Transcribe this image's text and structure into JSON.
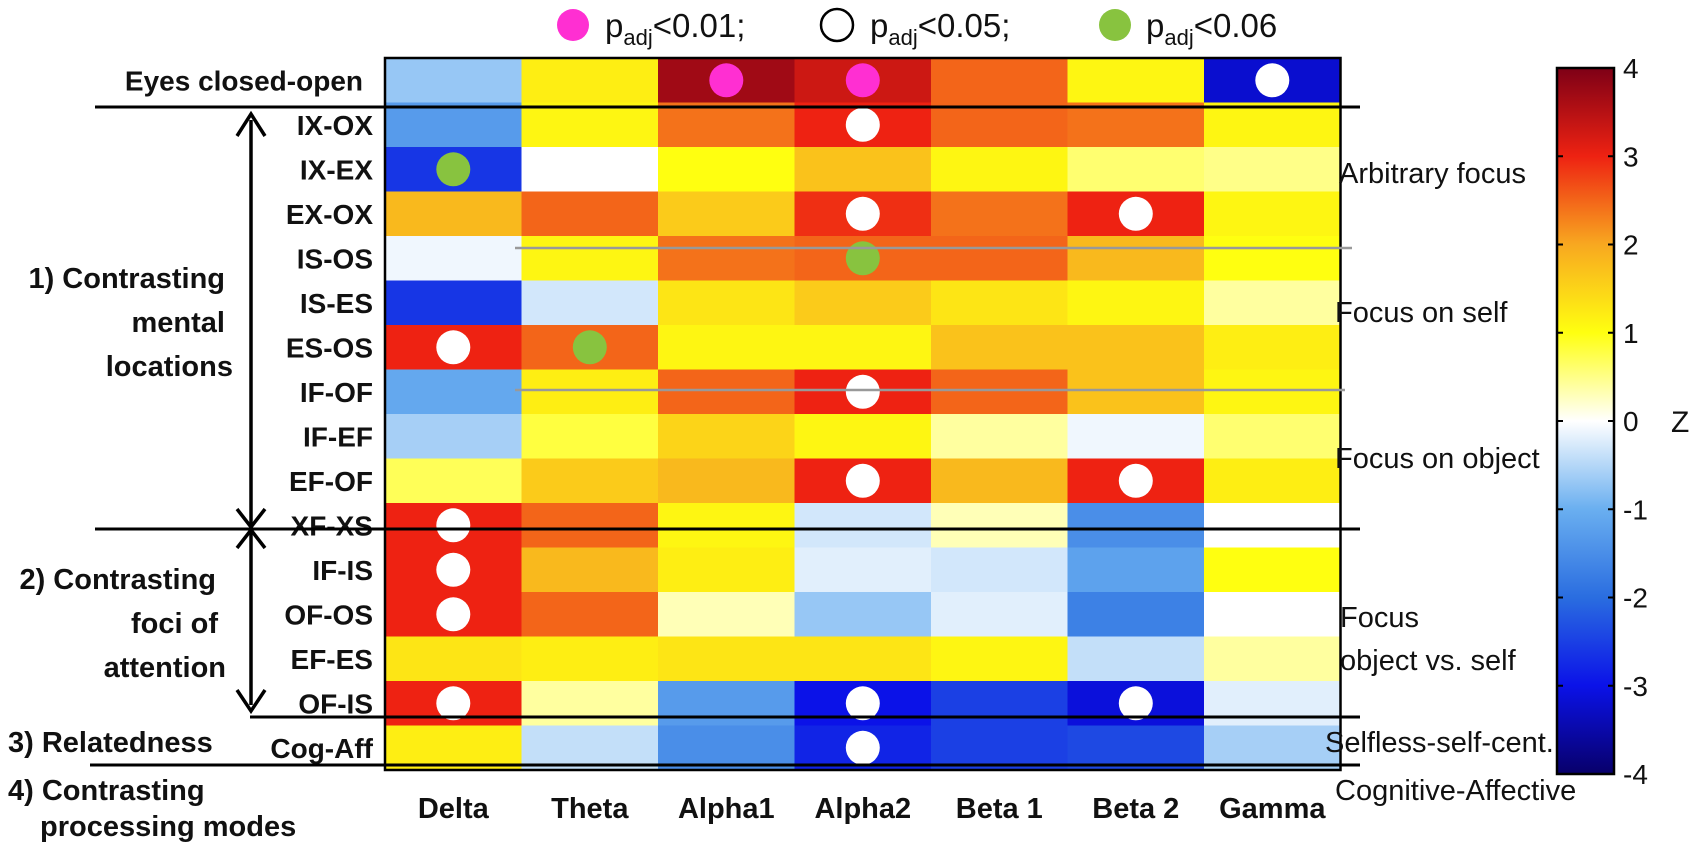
{
  "chart_data": {
    "type": "heatmap",
    "legend_entries": [
      {
        "text": "p",
        "sub": "adj",
        "suffix": "<0.01;",
        "color": "#ff2fd2"
      },
      {
        "text": "p",
        "sub": "adj",
        "suffix": "<0.05;",
        "color": "#ffffff"
      },
      {
        "text": "p",
        "sub": "adj",
        "suffix": "<0.06",
        "color": "#88c33f"
      }
    ],
    "columns": [
      "Delta",
      "Theta",
      "Alpha1",
      "Alpha2",
      "Beta 1",
      "Beta 2",
      "Gamma"
    ],
    "rows": [
      "Eyes closed-open",
      "IX-OX",
      "IX-EX",
      "EX-OX",
      "IS-OS",
      "IS-ES",
      "ES-OS",
      "IF-OF",
      "IF-EF",
      "EF-OF",
      "XF-XS",
      "IF-IS",
      "OF-OS",
      "EF-ES",
      "OF-IS",
      "Cog-Aff"
    ],
    "values": [
      [
        -0.7,
        1.2,
        3.7,
        3.3,
        2.5,
        1.1,
        -3.2
      ],
      [
        -1.3,
        1.1,
        2.4,
        3.0,
        2.5,
        2.4,
        1.1
      ],
      [
        -2.6,
        0.0,
        1.0,
        1.7,
        1.1,
        0.6,
        0.5
      ],
      [
        1.8,
        2.5,
        1.6,
        2.9,
        2.4,
        3.0,
        1.1
      ],
      [
        -0.1,
        1.1,
        2.4,
        2.5,
        2.5,
        1.8,
        1.0
      ],
      [
        -2.6,
        -0.3,
        1.3,
        1.6,
        1.3,
        1.1,
        0.4
      ],
      [
        3.0,
        2.5,
        1.1,
        1.1,
        1.7,
        1.7,
        1.2
      ],
      [
        -1.1,
        1.2,
        2.5,
        3.0,
        2.5,
        1.7,
        1.1
      ],
      [
        -0.6,
        0.8,
        1.5,
        1.1,
        0.4,
        -0.1,
        0.6
      ],
      [
        0.7,
        1.6,
        1.8,
        3.0,
        1.8,
        3.0,
        1.2
      ],
      [
        3.0,
        2.5,
        1.1,
        -0.3,
        0.3,
        -1.5,
        0.0
      ],
      [
        3.0,
        1.8,
        1.2,
        -0.2,
        -0.3,
        -1.2,
        1.0
      ],
      [
        3.0,
        2.5,
        0.3,
        -0.7,
        -0.2,
        -1.7,
        0.0
      ],
      [
        1.3,
        1.2,
        1.3,
        1.3,
        1.1,
        -0.4,
        0.4
      ],
      [
        3.0,
        0.4,
        -1.3,
        -3.0,
        -2.5,
        -3.1,
        -0.2
      ],
      [
        1.2,
        -0.4,
        -1.5,
        -2.8,
        -2.5,
        -2.4,
        -0.6
      ]
    ],
    "markers": [
      {
        "row": 0,
        "col": 2,
        "level": "p<0.01"
      },
      {
        "row": 0,
        "col": 3,
        "level": "p<0.01"
      },
      {
        "row": 0,
        "col": 6,
        "level": "p<0.05"
      },
      {
        "row": 1,
        "col": 3,
        "level": "p<0.05"
      },
      {
        "row": 2,
        "col": 0,
        "level": "p<0.06"
      },
      {
        "row": 3,
        "col": 3,
        "level": "p<0.05"
      },
      {
        "row": 3,
        "col": 5,
        "level": "p<0.05"
      },
      {
        "row": 4,
        "col": 3,
        "level": "p<0.06"
      },
      {
        "row": 6,
        "col": 0,
        "level": "p<0.05"
      },
      {
        "row": 6,
        "col": 1,
        "level": "p<0.06"
      },
      {
        "row": 7,
        "col": 3,
        "level": "p<0.05"
      },
      {
        "row": 9,
        "col": 3,
        "level": "p<0.05"
      },
      {
        "row": 9,
        "col": 5,
        "level": "p<0.05"
      },
      {
        "row": 10,
        "col": 0,
        "level": "p<0.05"
      },
      {
        "row": 11,
        "col": 0,
        "level": "p<0.05"
      },
      {
        "row": 12,
        "col": 0,
        "level": "p<0.05"
      },
      {
        "row": 14,
        "col": 0,
        "level": "p<0.05"
      },
      {
        "row": 14,
        "col": 3,
        "level": "p<0.05"
      },
      {
        "row": 14,
        "col": 5,
        "level": "p<0.05"
      },
      {
        "row": 15,
        "col": 3,
        "level": "p<0.05"
      }
    ],
    "groups": [
      {
        "lines": [
          "1) Contrasting",
          "mental",
          "locations"
        ]
      },
      {
        "lines": [
          "2) Contrasting",
          "foci of",
          "attention"
        ]
      },
      {
        "lines": [
          "3) Relatedness"
        ]
      },
      {
        "lines": [
          "4) Contrasting",
          "processing modes"
        ]
      }
    ],
    "right_annotations": [
      {
        "lines": [
          "Arbitrary focus"
        ]
      },
      {
        "lines": [
          "Focus on self"
        ]
      },
      {
        "lines": [
          "Focus on object"
        ]
      },
      {
        "lines": [
          "Focus",
          "object vs. self"
        ]
      },
      {
        "lines": [
          "Selfless-self-cent."
        ]
      },
      {
        "lines": [
          "Cognitive-Affective"
        ]
      }
    ],
    "colorbar": {
      "label": "Z",
      "range": [
        -4,
        4
      ],
      "ticks": [
        4,
        3,
        2,
        1,
        0,
        -1,
        -2,
        -3,
        -4
      ],
      "colormap": "jet-white-center",
      "stops": [
        {
          "v": -4.0,
          "c": "#08006a"
        },
        {
          "v": -3.0,
          "c": "#0b12e8"
        },
        {
          "v": -2.0,
          "c": "#2a6de0"
        },
        {
          "v": -1.0,
          "c": "#6aaff0"
        },
        {
          "v": 0.0,
          "c": "#ffffff"
        },
        {
          "v": 1.0,
          "c": "#ffff10"
        },
        {
          "v": 2.0,
          "c": "#f8a820"
        },
        {
          "v": 3.0,
          "c": "#ee2212"
        },
        {
          "v": 4.0,
          "c": "#7e0016"
        }
      ]
    }
  }
}
